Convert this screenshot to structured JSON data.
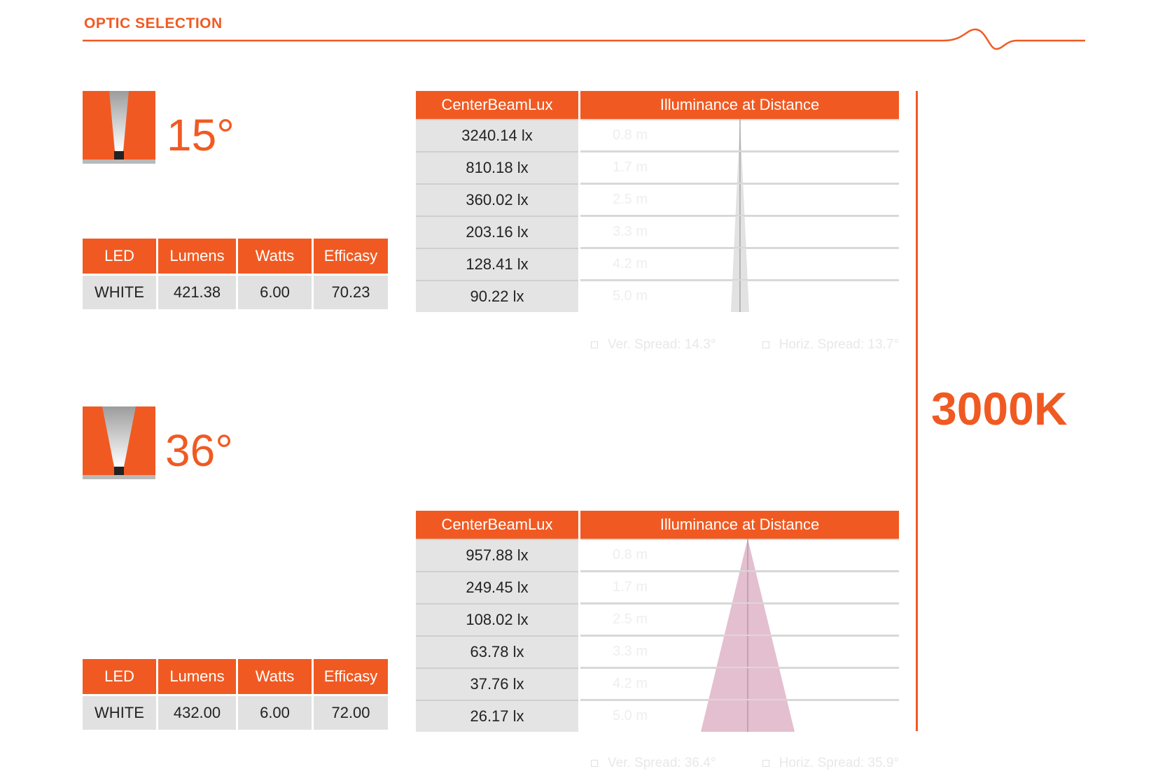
{
  "header": {
    "title": "OPTIC SELECTION"
  },
  "cct": "3000K",
  "led_columns": [
    "LED",
    "Lumens",
    "Watts",
    "Efficasy"
  ],
  "ill_columns": [
    "CenterBeamLux",
    "Illuminance at Distance"
  ],
  "optics": [
    {
      "angle": "15°",
      "led": {
        "led": "WHITE",
        "lumens": "421.38",
        "watts": "6.00",
        "efficasy": "70.23"
      },
      "rows": [
        {
          "lux": "3240.14 lx",
          "distance": "0.8 m"
        },
        {
          "lux": "810.18 lx",
          "distance": "1.7 m"
        },
        {
          "lux": "360.02 lx",
          "distance": "2.5 m"
        },
        {
          "lux": "203.16 lx",
          "distance": "3.3 m"
        },
        {
          "lux": "128.41 lx",
          "distance": "4.2 m"
        },
        {
          "lux": "90.22 lx",
          "distance": "5.0 m"
        }
      ],
      "ver_spread": "Ver. Spread: 14.3°",
      "hor_spread": "Horiz. Spread: 13.7°",
      "beam_color": "#e2e2e2"
    },
    {
      "angle": "36°",
      "led": {
        "led": "WHITE",
        "lumens": "432.00",
        "watts": "6.00",
        "efficasy": "72.00"
      },
      "rows": [
        {
          "lux": "957.88 lx",
          "distance": "0.8 m"
        },
        {
          "lux": "249.45 lx",
          "distance": "1.7 m"
        },
        {
          "lux": "108.02 lx",
          "distance": "2.5 m"
        },
        {
          "lux": "63.78 lx",
          "distance": "3.3 m"
        },
        {
          "lux": "37.76 lx",
          "distance": "4.2 m"
        },
        {
          "lux": "26.17 lx",
          "distance": "5.0 m"
        }
      ],
      "ver_spread": "Ver. Spread: 36.4°",
      "hor_spread": "Horiz. Spread: 35.9°",
      "beam_color": "#e4bfcf"
    }
  ],
  "colors": {
    "accent": "#f05a22",
    "cell": "#e1e1e1"
  }
}
